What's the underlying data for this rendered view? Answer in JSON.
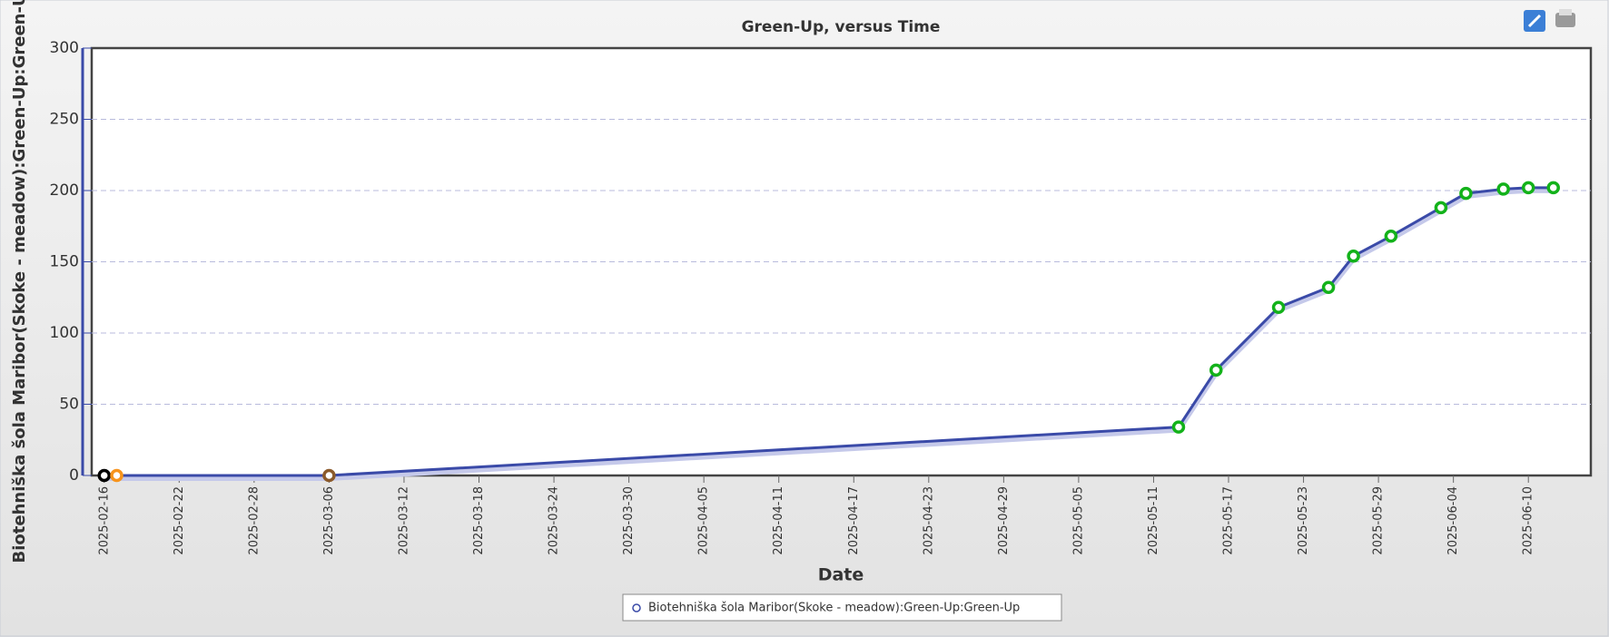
{
  "chart_data": {
    "type": "line",
    "title": "Green-Up, versus Time",
    "x_label": "Date",
    "y_label": "Biotehniška šola Maribor(Skoke - meadow):Green-Up:Green-Up",
    "x": [
      "2025-02-16",
      "2025-02-17",
      "2025-03-06",
      "2025-05-13",
      "2025-05-16",
      "2025-05-21",
      "2025-05-25",
      "2025-05-27",
      "2025-05-30",
      "2025-06-03",
      "2025-06-05",
      "2025-06-08",
      "2025-06-10",
      "2025-06-12"
    ],
    "series": [
      {
        "name": "Biotehniška šola Maribor(Skoke - meadow):Green-Up:Green-Up",
        "color": "#3a4aa8",
        "values": [
          0,
          0,
          0,
          34,
          74,
          118,
          132,
          154,
          168,
          188,
          198,
          201,
          202,
          202
        ],
        "point_colors": [
          "#000000",
          "#f7941d",
          "#8b5a2b",
          "#13b21a",
          "#13b21a",
          "#13b21a",
          "#13b21a",
          "#13b21a",
          "#13b21a",
          "#13b21a",
          "#13b21a",
          "#13b21a",
          "#13b21a",
          "#13b21a"
        ]
      }
    ],
    "xlim": [
      "2025-02-15",
      "2025-06-15"
    ],
    "xticks": [
      "2025-02-16",
      "2025-02-22",
      "2025-02-28",
      "2025-03-06",
      "2025-03-12",
      "2025-03-18",
      "2025-03-24",
      "2025-03-30",
      "2025-04-05",
      "2025-04-11",
      "2025-04-17",
      "2025-04-23",
      "2025-04-29",
      "2025-05-05",
      "2025-05-11",
      "2025-05-17",
      "2025-05-23",
      "2025-05-29",
      "2025-06-04",
      "2025-06-10"
    ],
    "ylim": [
      0,
      300
    ],
    "yticks": [
      0,
      50,
      100,
      150,
      200,
      250,
      300
    ],
    "grid": true,
    "legend": "bottom"
  }
}
